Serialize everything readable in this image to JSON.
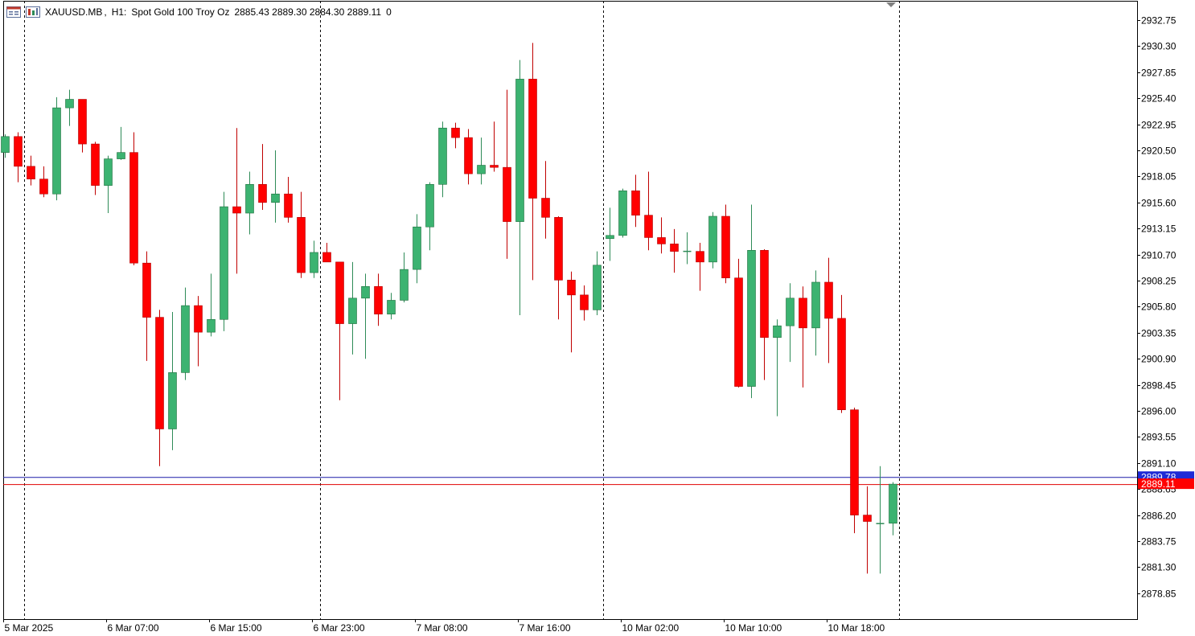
{
  "header": {
    "symbol": "XAUUSD.MB",
    "timeframe": "H1:",
    "description": "Spot Gold 100 Troy Oz",
    "ohlc": "2885.43 2889.30 2884.30 2889.11",
    "volume": "0",
    "icons": [
      "chart-window-icon",
      "indicators-icon"
    ]
  },
  "colors": {
    "bull": "#3cb371",
    "bear": "#ff0000",
    "wick_bull": "#2e8b57",
    "wick_bear": "#c00000",
    "ask_line": "#1a1aa8",
    "bid_line": "#e00000",
    "ask_tag": "#1e2ad6",
    "bid_tag": "#ff0000",
    "grid": "#000000"
  },
  "chart_data": {
    "type": "candlestick",
    "ylim": [
      2877.4,
      2934.6
    ],
    "y_ticks": [
      "2932.75",
      "2930.30",
      "2927.85",
      "2925.40",
      "2922.95",
      "2920.50",
      "2918.05",
      "2915.60",
      "2913.15",
      "2910.70",
      "2908.25",
      "2905.80",
      "2903.35",
      "2900.90",
      "2898.45",
      "2896.00",
      "2893.55",
      "2891.10",
      "2888.65",
      "2886.20",
      "2883.75",
      "2881.30",
      "2878.85"
    ],
    "x_labels": [
      "5 Mar 2025",
      "6 Mar 07:00",
      "6 Mar 15:00",
      "6 Mar 23:00",
      "7 Mar 08:00",
      "7 Mar 16:00",
      "10 Mar 02:00",
      "10 Mar 10:00",
      "10 Mar 18:00"
    ],
    "x_label_candle_index": [
      0,
      8,
      16,
      24,
      32,
      40,
      48,
      56,
      64
    ],
    "session_separators_after_candle": [
      1,
      24,
      46,
      69
    ],
    "ask_price": "2889.78",
    "bid_price": "2889.11",
    "ask_value": 2889.78,
    "bid_value": 2889.11,
    "candles": [
      {
        "o": 2920.3,
        "h": 2922.0,
        "l": 2919.8,
        "c": 2921.8
      },
      {
        "o": 2921.8,
        "h": 2922.2,
        "l": 2917.5,
        "c": 2919.0
      },
      {
        "o": 2919.0,
        "h": 2920.0,
        "l": 2917.2,
        "c": 2917.8
      },
      {
        "o": 2917.8,
        "h": 2919.0,
        "l": 2916.1,
        "c": 2916.4
      },
      {
        "o": 2916.4,
        "h": 2925.5,
        "l": 2915.8,
        "c": 2924.5
      },
      {
        "o": 2924.5,
        "h": 2926.2,
        "l": 2922.8,
        "c": 2925.3
      },
      {
        "o": 2925.3,
        "h": 2925.3,
        "l": 2920.3,
        "c": 2921.1
      },
      {
        "o": 2921.1,
        "h": 2921.3,
        "l": 2916.3,
        "c": 2917.2
      },
      {
        "o": 2917.2,
        "h": 2920.0,
        "l": 2914.6,
        "c": 2919.7
      },
      {
        "o": 2919.7,
        "h": 2922.7,
        "l": 2919.6,
        "c": 2920.3
      },
      {
        "o": 2920.3,
        "h": 2922.2,
        "l": 2909.7,
        "c": 2909.9
      },
      {
        "o": 2909.9,
        "h": 2911.0,
        "l": 2900.7,
        "c": 2904.8
      },
      {
        "o": 2904.8,
        "h": 2905.5,
        "l": 2890.8,
        "c": 2894.3
      },
      {
        "o": 2894.3,
        "h": 2905.3,
        "l": 2892.3,
        "c": 2899.6
      },
      {
        "o": 2899.6,
        "h": 2907.6,
        "l": 2898.9,
        "c": 2905.9
      },
      {
        "o": 2905.9,
        "h": 2906.8,
        "l": 2900.2,
        "c": 2903.4
      },
      {
        "o": 2903.4,
        "h": 2908.9,
        "l": 2903.0,
        "c": 2904.6
      },
      {
        "o": 2904.6,
        "h": 2916.6,
        "l": 2903.5,
        "c": 2915.2
      },
      {
        "o": 2915.2,
        "h": 2922.6,
        "l": 2908.9,
        "c": 2914.6
      },
      {
        "o": 2914.6,
        "h": 2918.5,
        "l": 2912.6,
        "c": 2917.3
      },
      {
        "o": 2917.3,
        "h": 2921.1,
        "l": 2914.9,
        "c": 2915.6
      },
      {
        "o": 2915.6,
        "h": 2920.5,
        "l": 2913.7,
        "c": 2916.4
      },
      {
        "o": 2916.4,
        "h": 2918.0,
        "l": 2913.7,
        "c": 2914.2
      },
      {
        "o": 2914.2,
        "h": 2916.6,
        "l": 2908.5,
        "c": 2909.0
      },
      {
        "o": 2909.0,
        "h": 2912.0,
        "l": 2908.5,
        "c": 2910.9
      },
      {
        "o": 2910.9,
        "h": 2911.8,
        "l": 2910.0,
        "c": 2910.0
      },
      {
        "o": 2910.0,
        "h": 2910.0,
        "l": 2897.0,
        "c": 2904.2
      },
      {
        "o": 2904.2,
        "h": 2910.0,
        "l": 2901.3,
        "c": 2906.6
      },
      {
        "o": 2906.6,
        "h": 2908.9,
        "l": 2900.9,
        "c": 2907.7
      },
      {
        "o": 2907.7,
        "h": 2908.9,
        "l": 2904.0,
        "c": 2905.1
      },
      {
        "o": 2905.1,
        "h": 2907.1,
        "l": 2904.6,
        "c": 2906.4
      },
      {
        "o": 2906.4,
        "h": 2910.9,
        "l": 2906.2,
        "c": 2909.3
      },
      {
        "o": 2909.3,
        "h": 2914.5,
        "l": 2908.0,
        "c": 2913.3
      },
      {
        "o": 2913.3,
        "h": 2917.5,
        "l": 2911.1,
        "c": 2917.3
      },
      {
        "o": 2917.3,
        "h": 2923.2,
        "l": 2916.1,
        "c": 2922.6
      },
      {
        "o": 2922.6,
        "h": 2923.1,
        "l": 2920.7,
        "c": 2921.7
      },
      {
        "o": 2921.7,
        "h": 2922.5,
        "l": 2917.3,
        "c": 2918.3
      },
      {
        "o": 2918.3,
        "h": 2921.7,
        "l": 2917.3,
        "c": 2919.1
      },
      {
        "o": 2919.1,
        "h": 2923.2,
        "l": 2918.5,
        "c": 2918.9
      },
      {
        "o": 2918.9,
        "h": 2926.2,
        "l": 2910.3,
        "c": 2913.8
      },
      {
        "o": 2913.8,
        "h": 2929.0,
        "l": 2905.0,
        "c": 2927.2
      },
      {
        "o": 2927.2,
        "h": 2930.6,
        "l": 2908.3,
        "c": 2916.0
      },
      {
        "o": 2916.0,
        "h": 2919.5,
        "l": 2912.2,
        "c": 2914.2
      },
      {
        "o": 2914.2,
        "h": 2914.3,
        "l": 2904.6,
        "c": 2908.3
      },
      {
        "o": 2908.3,
        "h": 2909.1,
        "l": 2901.5,
        "c": 2906.9
      },
      {
        "o": 2906.9,
        "h": 2907.8,
        "l": 2904.5,
        "c": 2905.5
      },
      {
        "o": 2905.5,
        "h": 2911.0,
        "l": 2905.0,
        "c": 2909.7
      },
      {
        "o": 2912.2,
        "h": 2915.1,
        "l": 2910.1,
        "c": 2912.5
      },
      {
        "o": 2912.5,
        "h": 2916.9,
        "l": 2912.3,
        "c": 2916.7
      },
      {
        "o": 2916.7,
        "h": 2918.2,
        "l": 2913.3,
        "c": 2914.4
      },
      {
        "o": 2914.4,
        "h": 2918.5,
        "l": 2911.1,
        "c": 2912.3
      },
      {
        "o": 2912.3,
        "h": 2914.2,
        "l": 2910.8,
        "c": 2911.7
      },
      {
        "o": 2911.7,
        "h": 2913.1,
        "l": 2909.0,
        "c": 2911.0
      },
      {
        "o": 2911.0,
        "h": 2912.8,
        "l": 2909.8,
        "c": 2911.0
      },
      {
        "o": 2911.0,
        "h": 2911.8,
        "l": 2907.3,
        "c": 2910.0
      },
      {
        "o": 2910.0,
        "h": 2914.7,
        "l": 2909.4,
        "c": 2914.3
      },
      {
        "o": 2914.3,
        "h": 2915.4,
        "l": 2908.0,
        "c": 2908.5
      },
      {
        "o": 2908.5,
        "h": 2910.3,
        "l": 2898.2,
        "c": 2898.3
      },
      {
        "o": 2898.3,
        "h": 2915.4,
        "l": 2897.2,
        "c": 2911.1
      },
      {
        "o": 2911.1,
        "h": 2911.2,
        "l": 2898.9,
        "c": 2902.9
      },
      {
        "o": 2902.9,
        "h": 2904.6,
        "l": 2895.5,
        "c": 2904.0
      },
      {
        "o": 2904.0,
        "h": 2908.0,
        "l": 2900.6,
        "c": 2906.6
      },
      {
        "o": 2906.6,
        "h": 2907.7,
        "l": 2898.2,
        "c": 2903.8
      },
      {
        "o": 2903.8,
        "h": 2909.2,
        "l": 2901.2,
        "c": 2908.1
      },
      {
        "o": 2908.1,
        "h": 2910.4,
        "l": 2900.5,
        "c": 2904.7
      },
      {
        "o": 2904.7,
        "h": 2906.9,
        "l": 2895.8,
        "c": 2896.1
      },
      {
        "o": 2896.1,
        "h": 2896.3,
        "l": 2884.5,
        "c": 2886.2
      },
      {
        "o": 2886.2,
        "h": 2888.9,
        "l": 2880.7,
        "c": 2885.6
      },
      {
        "o": 2885.4,
        "h": 2890.8,
        "l": 2880.7,
        "c": 2885.4
      },
      {
        "o": 2885.43,
        "h": 2889.3,
        "l": 2884.3,
        "c": 2889.11
      }
    ]
  }
}
